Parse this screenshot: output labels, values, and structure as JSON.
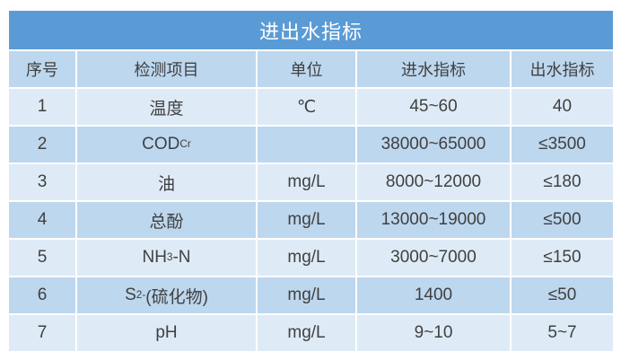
{
  "title": "进出水指标",
  "colors": {
    "title_bg": "#5b9bd5",
    "title_text": "#ffffff",
    "header_bg": "#bdd7ee",
    "row_odd_bg": "#deebf7",
    "row_even_bg": "#bdd7ee",
    "cell_text": "#404040"
  },
  "table": {
    "headers": [
      "序号",
      "检测项目",
      "单位",
      "进水指标",
      "出水指标"
    ],
    "rows": [
      {
        "no": "1",
        "item_main": "温度",
        "item_sub": "",
        "item_sup": "",
        "item_tail": "",
        "unit": "℃",
        "inlet": "45~60",
        "outlet": "40"
      },
      {
        "no": "2",
        "item_main": "COD",
        "item_sub": "Cr",
        "item_sup": "",
        "item_tail": "",
        "unit": "",
        "inlet": "38000~65000",
        "outlet": "≤3500"
      },
      {
        "no": "3",
        "item_main": "油",
        "item_sub": "",
        "item_sup": "",
        "item_tail": "",
        "unit": "mg/L",
        "inlet": "8000~12000",
        "outlet": "≤180"
      },
      {
        "no": "4",
        "item_main": "总酚",
        "item_sub": "",
        "item_sup": "",
        "item_tail": "",
        "unit": "mg/L",
        "inlet": "13000~19000",
        "outlet": "≤500"
      },
      {
        "no": "5",
        "item_main": "NH",
        "item_sub": "3",
        "item_sup": "",
        "item_tail": "-N",
        "unit": "mg/L",
        "inlet": "3000~7000",
        "outlet": "≤150"
      },
      {
        "no": "6",
        "item_main": "S",
        "item_sub": "",
        "item_sup": "2-",
        "item_tail": "(硫化物)",
        "unit": "mg/L",
        "inlet": "1400",
        "outlet": "≤50"
      },
      {
        "no": "7",
        "item_main": "pH",
        "item_sub": "",
        "item_sup": "",
        "item_tail": "",
        "unit": "mg/L",
        "inlet": "9~10",
        "outlet": "5~7"
      }
    ]
  }
}
